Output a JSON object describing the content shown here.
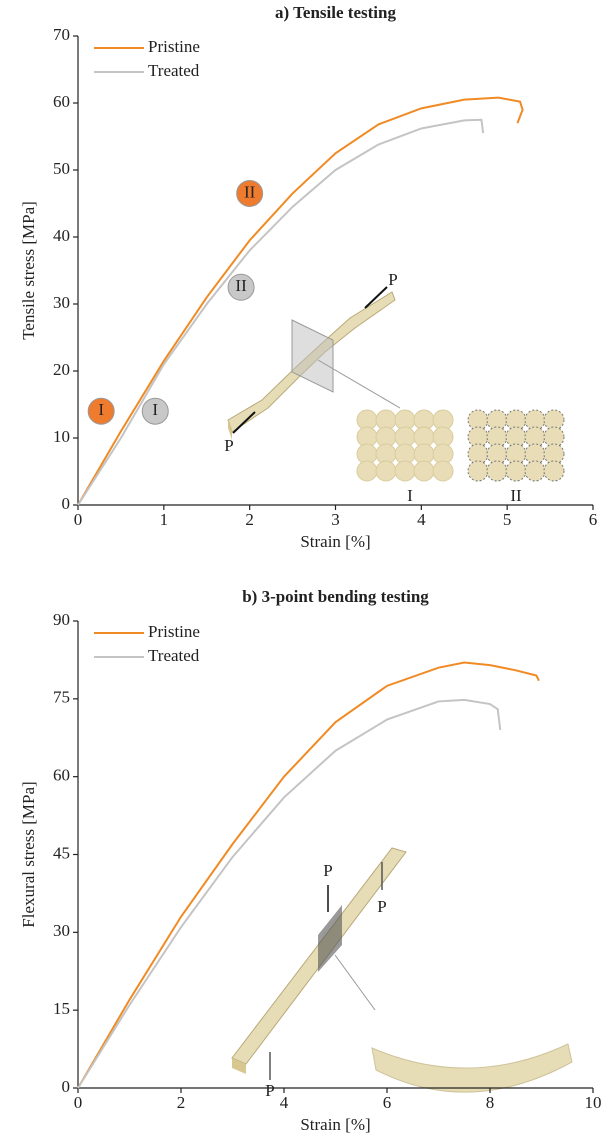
{
  "chart_data": [
    {
      "type": "line",
      "title": "a) Tensile testing",
      "x_label": "Strain [%]",
      "y_label": "Tensile stress [MPa]",
      "xlim": [
        0,
        6
      ],
      "xticks": [
        0,
        1,
        2,
        3,
        4,
        5,
        6
      ],
      "ylim": [
        0,
        70
      ],
      "yticks": [
        0,
        10,
        20,
        30,
        40,
        50,
        60,
        70
      ],
      "legend": "upper left",
      "series": [
        {
          "name": "Pristine",
          "color": "#f08a24",
          "x": [
            0,
            0.25,
            0.5,
            1,
            1.5,
            2,
            2.5,
            3,
            3.5,
            4,
            4.5,
            4.9,
            5.15,
            5.18,
            5.12
          ],
          "values": [
            0,
            5.5,
            11,
            21.5,
            31,
            39.5,
            46.5,
            52.5,
            56.8,
            59.2,
            60.5,
            60.8,
            60.2,
            59,
            57
          ]
        },
        {
          "name": "Treated",
          "color": "#c4c4c4",
          "x": [
            0,
            0.5,
            1,
            1.5,
            2,
            2.5,
            3,
            3.5,
            4,
            4.5,
            4.7,
            4.72
          ],
          "values": [
            0,
            10,
            21,
            30,
            38,
            44.5,
            50,
            53.8,
            56.2,
            57.4,
            57.5,
            55.5
          ]
        }
      ],
      "annotations": [
        {
          "text": "I",
          "x": 0.27,
          "y": 14,
          "color": "#ef7b2e"
        },
        {
          "text": "I",
          "x": 0.9,
          "y": 14,
          "color": "#c8c8c8"
        },
        {
          "text": "II",
          "x": 2.0,
          "y": 46.5,
          "color": "#ef7b2e"
        },
        {
          "text": "II",
          "x": 1.9,
          "y": 32.5,
          "color": "#c8c8c8"
        }
      ],
      "inset_labels": [
        "P",
        "P",
        "I",
        "II"
      ]
    },
    {
      "type": "line",
      "title": "b) 3-point bending testing",
      "x_label": "Strain [%]",
      "y_label": "Flexural stress [MPa]",
      "xlim": [
        0,
        10
      ],
      "xticks": [
        0,
        2,
        4,
        6,
        8,
        10
      ],
      "ylim": [
        0,
        90
      ],
      "yticks": [
        0,
        15,
        30,
        45,
        60,
        75,
        90
      ],
      "legend": "upper left",
      "series": [
        {
          "name": "Pristine",
          "color": "#f08a24",
          "x": [
            0,
            1,
            2,
            3,
            4,
            5,
            6,
            7,
            7.5,
            8,
            8.5,
            8.9,
            8.95
          ],
          "values": [
            0,
            17,
            33,
            47,
            60,
            70.5,
            77.5,
            81,
            82,
            81.5,
            80.5,
            79.5,
            78.5
          ]
        },
        {
          "name": "Treated",
          "color": "#c4c4c4",
          "x": [
            0,
            1,
            2,
            3,
            4,
            5,
            6,
            7,
            7.5,
            8,
            8.15,
            8.2
          ],
          "values": [
            0,
            16,
            31,
            44.5,
            56,
            65,
            71,
            74.5,
            74.8,
            74,
            73,
            69
          ]
        }
      ],
      "inset_labels": [
        "P",
        "P",
        "P"
      ]
    }
  ]
}
